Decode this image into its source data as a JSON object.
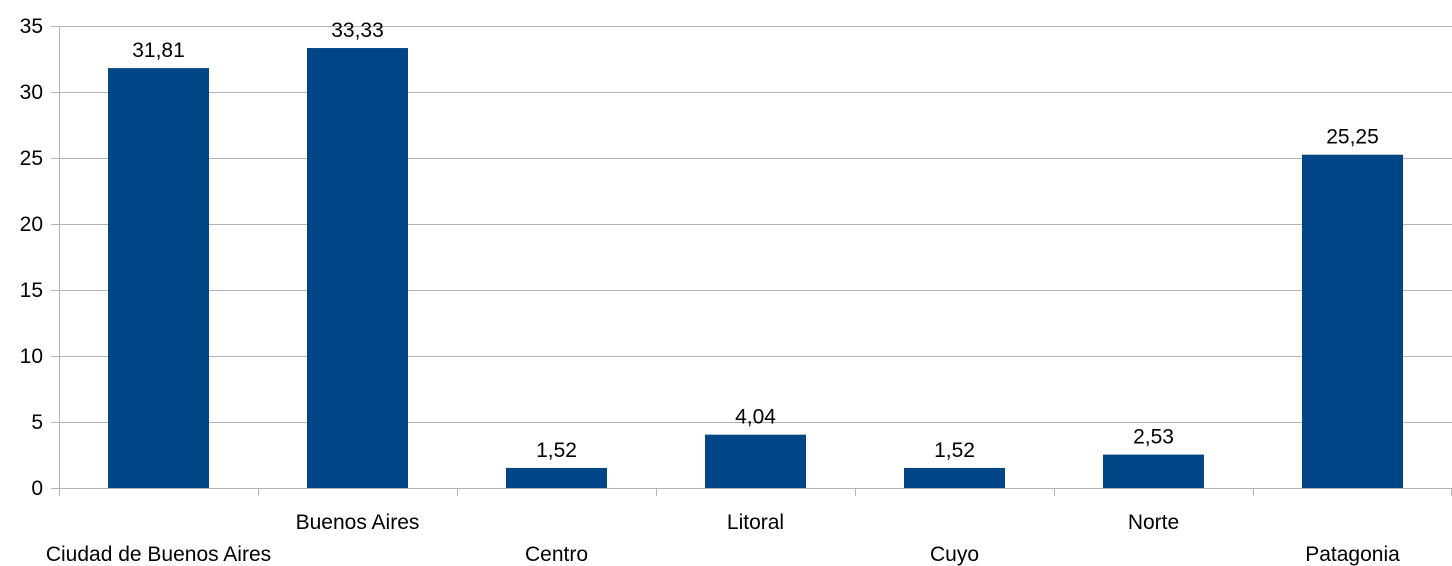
{
  "chart_data": {
    "type": "bar",
    "title": "",
    "xlabel": "",
    "ylabel": "",
    "categories": [
      "Ciudad de Buenos Aires",
      "Buenos Aires",
      "Centro",
      "Litoral",
      "Cuyo",
      "Norte",
      "Patagonia"
    ],
    "values": [
      31.81,
      33.33,
      1.52,
      4.04,
      1.52,
      2.53,
      25.25
    ],
    "data_labels": [
      "31,81",
      "33,33",
      "1,52",
      "4,04",
      "1,52",
      "2,53",
      "25,25"
    ],
    "yticks": [
      0,
      5,
      10,
      15,
      20,
      25,
      30,
      35
    ],
    "ylim": [
      0,
      35
    ],
    "grid": true,
    "legend": "none",
    "category_label_rows": "alternating",
    "colors": {
      "bar": "#004586",
      "grid": "#b3b3b3",
      "axis": "#b3b3b3",
      "text": "#000000"
    }
  }
}
